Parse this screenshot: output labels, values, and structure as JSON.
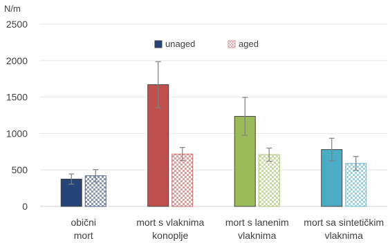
{
  "chart_data": {
    "type": "bar",
    "y_unit": "N/m",
    "ylim": [
      0,
      2500
    ],
    "yticks": [
      0,
      500,
      1000,
      1500,
      2000,
      2500
    ],
    "grid": true,
    "legend_position": "top-center",
    "categories": [
      [
        "obični",
        "mort"
      ],
      [
        "mort s vlaknima",
        "konoplje"
      ],
      [
        "mort s lanenim",
        "vlaknima"
      ],
      [
        "mort sa sintetičkim",
        "vlaknima"
      ]
    ],
    "category_colors": [
      "#264478",
      "#C0504D",
      "#9BBB59",
      "#4BACC6"
    ],
    "series": [
      {
        "name": "unaged",
        "pattern": "solid",
        "values": [
          375,
          1670,
          1235,
          780
        ],
        "errors": [
          70,
          315,
          260,
          155
        ]
      },
      {
        "name": "aged",
        "pattern": "checkered",
        "values": [
          420,
          718,
          710,
          590
        ],
        "errors": [
          85,
          90,
          90,
          95
        ]
      }
    ]
  }
}
